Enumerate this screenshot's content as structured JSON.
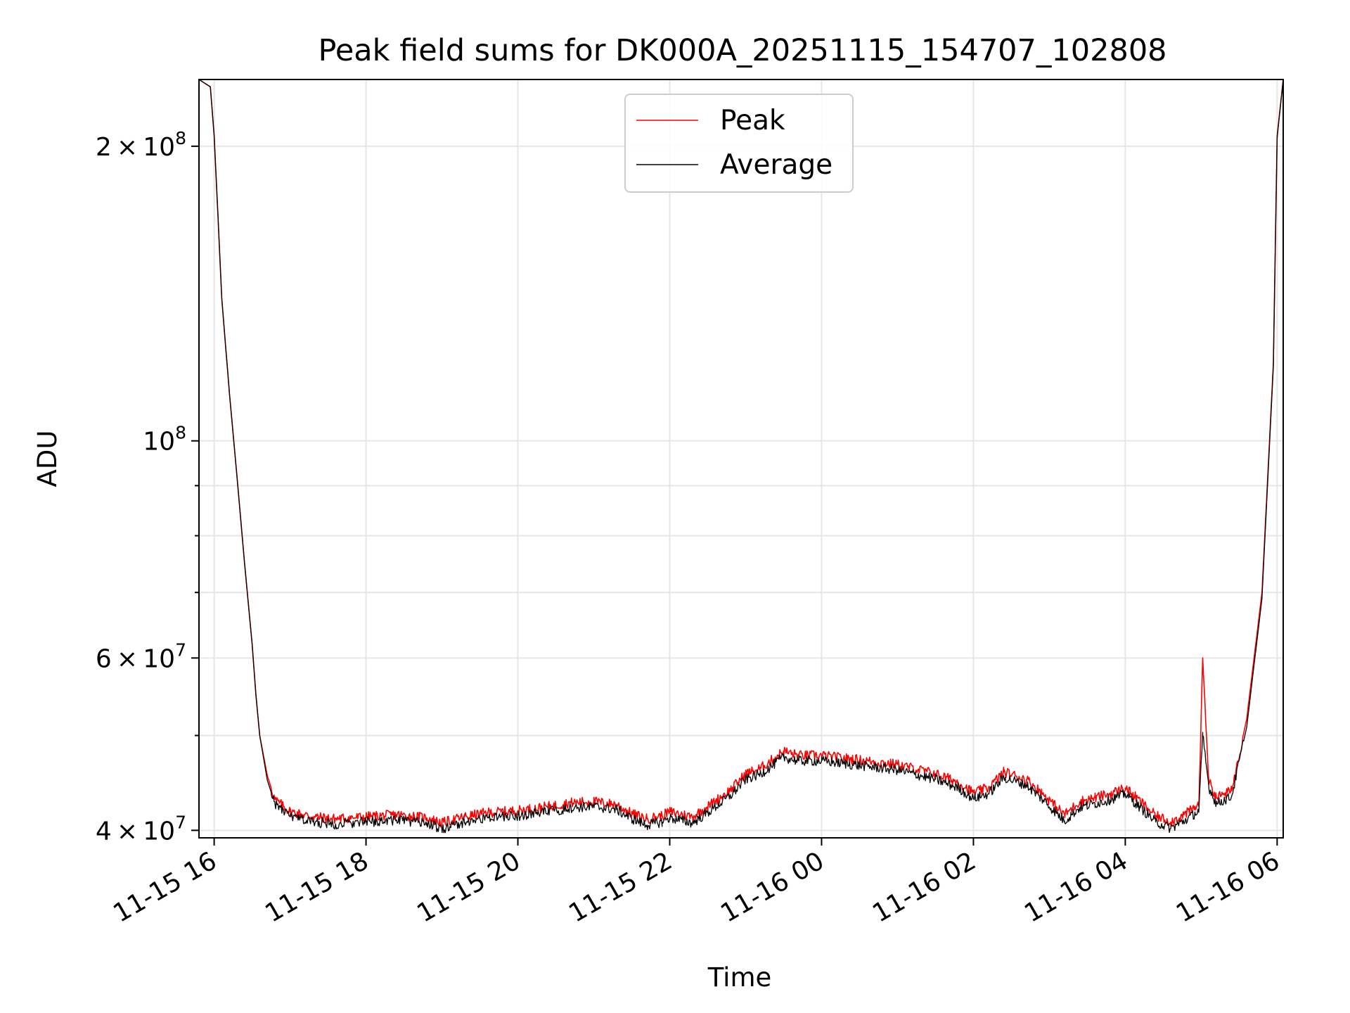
{
  "chart_data": {
    "type": "line",
    "title": "Peak field sums for DK000A_20251115_154707_102808",
    "xlabel": "Time",
    "ylabel": "ADU",
    "yscale": "log",
    "ylim": [
      39300000,
      234000000
    ],
    "xlim_hours": [
      15.8,
      30.08
    ],
    "grid": true,
    "legend_position": "upper center",
    "x_ticks": [
      {
        "hour": 16,
        "label": "11-15 16"
      },
      {
        "hour": 18,
        "label": "11-15 18"
      },
      {
        "hour": 20,
        "label": "11-15 20"
      },
      {
        "hour": 22,
        "label": "11-15 22"
      },
      {
        "hour": 24,
        "label": "11-16 00"
      },
      {
        "hour": 26,
        "label": "11-16 02"
      },
      {
        "hour": 28,
        "label": "11-16 04"
      },
      {
        "hour": 30,
        "label": "11-16 06"
      }
    ],
    "y_major_ticks": [
      {
        "value": 40000000,
        "mantissa": "4",
        "exponent": "7"
      },
      {
        "value": 60000000,
        "mantissa": "6",
        "exponent": "7"
      },
      {
        "value": 100000000,
        "mantissa": "",
        "exponent": "8"
      },
      {
        "value": 200000000,
        "mantissa": "2",
        "exponent": "8"
      }
    ],
    "y_minor_ticks": [
      50000000,
      70000000,
      80000000,
      90000000
    ],
    "series": [
      {
        "name": "Peak",
        "color": "#ff0000",
        "x_hours": [
          15.8,
          15.95,
          16.0,
          16.05,
          16.1,
          16.2,
          16.3,
          16.4,
          16.5,
          16.55,
          16.6,
          16.7,
          16.8,
          17.0,
          17.3,
          17.6,
          18.0,
          18.4,
          18.8,
          19.0,
          19.3,
          19.6,
          20.0,
          20.4,
          20.7,
          21.0,
          21.3,
          21.5,
          21.7,
          21.9,
          22.0,
          22.3,
          22.5,
          22.8,
          23.0,
          23.2,
          23.5,
          23.7,
          24.0,
          24.5,
          25.0,
          25.5,
          25.8,
          26.0,
          26.2,
          26.4,
          26.7,
          26.9,
          27.1,
          27.2,
          27.4,
          27.6,
          27.8,
          28.0,
          28.2,
          28.4,
          28.6,
          28.8,
          28.97,
          29.02,
          29.1,
          29.2,
          29.4,
          29.6,
          29.8,
          29.95,
          30.0,
          30.08
        ],
        "values": [
          234000000,
          230000000,
          205000000,
          170000000,
          140000000,
          112000000,
          92000000,
          75000000,
          62000000,
          55000000,
          50000000,
          45500000,
          43000000,
          41800000,
          41300000,
          41100000,
          41300000,
          41500000,
          41200000,
          40700000,
          41300000,
          41700000,
          41900000,
          42300000,
          42700000,
          42800000,
          42500000,
          41600000,
          41100000,
          41400000,
          41800000,
          41300000,
          42300000,
          44000000,
          45700000,
          46300000,
          48200000,
          47700000,
          47700000,
          47200000,
          46700000,
          45700000,
          44800000,
          43700000,
          44200000,
          45900000,
          45100000,
          43700000,
          42200000,
          41500000,
          42800000,
          43200000,
          43600000,
          44200000,
          42800000,
          41400000,
          40800000,
          41600000,
          42500000,
          60000000,
          44900000,
          43200000,
          43900000,
          52000000,
          70000000,
          120000000,
          205000000,
          234000000
        ]
      },
      {
        "name": "Average",
        "color": "#000000",
        "x_hours": [
          15.8,
          15.95,
          16.0,
          16.05,
          16.1,
          16.2,
          16.3,
          16.4,
          16.5,
          16.55,
          16.6,
          16.7,
          16.8,
          17.0,
          17.3,
          17.6,
          18.0,
          18.4,
          18.8,
          19.0,
          19.3,
          19.6,
          20.0,
          20.4,
          20.7,
          21.0,
          21.3,
          21.5,
          21.7,
          21.9,
          22.0,
          22.3,
          22.5,
          22.8,
          23.0,
          23.2,
          23.5,
          23.7,
          24.0,
          24.5,
          25.0,
          25.5,
          25.8,
          26.0,
          26.2,
          26.4,
          26.7,
          26.9,
          27.1,
          27.2,
          27.4,
          27.6,
          27.8,
          28.0,
          28.2,
          28.4,
          28.6,
          28.8,
          28.97,
          29.02,
          29.1,
          29.2,
          29.4,
          29.6,
          29.8,
          29.95,
          30.0,
          30.08
        ],
        "values": [
          234000000,
          230000000,
          205000000,
          170000000,
          140000000,
          112000000,
          92000000,
          75000000,
          62000000,
          55000000,
          50000000,
          45000000,
          42600000,
          41300000,
          40800000,
          40600000,
          40800000,
          41000000,
          40700000,
          40100000,
          40800000,
          41200000,
          41400000,
          41800000,
          42200000,
          42300000,
          42000000,
          41100000,
          40500000,
          40800000,
          41200000,
          40700000,
          41700000,
          43400000,
          45100000,
          45700000,
          47500000,
          47100000,
          47100000,
          46600000,
          46100000,
          45100000,
          44200000,
          43100000,
          43600000,
          45300000,
          44500000,
          43100000,
          41600000,
          40900000,
          42200000,
          42600000,
          43000000,
          43600000,
          42200000,
          40800000,
          40200000,
          41000000,
          41900000,
          50000000,
          44300000,
          42600000,
          43300000,
          51000000,
          69000000,
          119000000,
          204000000,
          234000000
        ]
      }
    ]
  }
}
